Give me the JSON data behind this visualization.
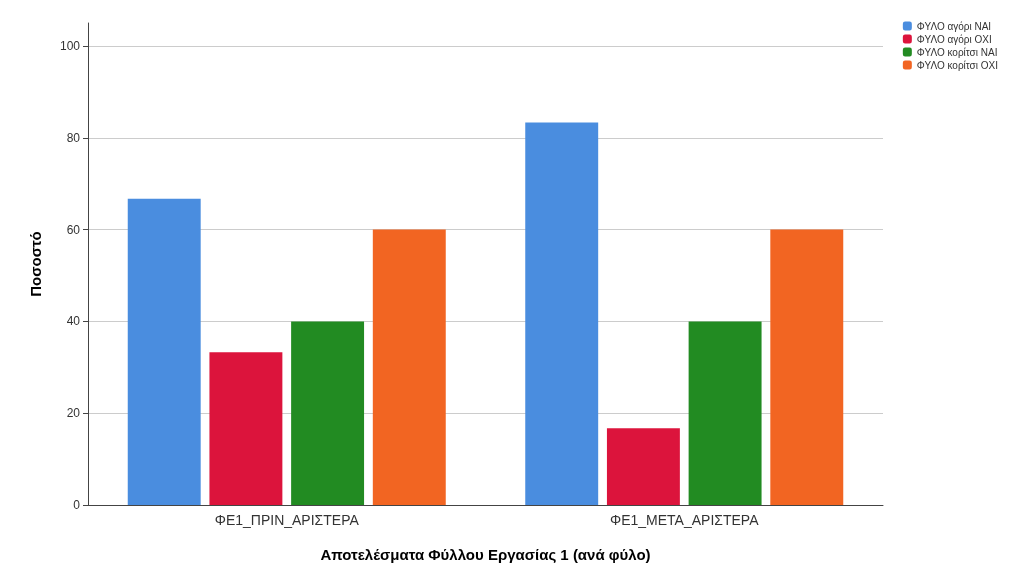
{
  "chart_data": {
    "type": "bar",
    "xlabel": "Αποτελέσματα Φύλλου Εργασίας 1 (ανά φύλο)",
    "ylabel": "Ποσοστό",
    "categories": [
      "ΦΕ1_ΠΡΙΝ_ΑΡΙΣΤΕΡΑ",
      "ΦΕ1_ΜΕΤΑ_ΑΡΙΣΤΕΡΑ"
    ],
    "series": [
      {
        "name": "ΦΥΛΟ αγόρι ΝΑΙ",
        "color": "#4a8ddf",
        "values": [
          66.7,
          83.3
        ]
      },
      {
        "name": "ΦΥΛΟ αγόρι ΟΧΙ",
        "color": "#dc143c",
        "values": [
          33.3,
          16.7
        ]
      },
      {
        "name": "ΦΥΛΟ κορίτσι ΝΑΙ",
        "color": "#228b22",
        "values": [
          40,
          40
        ]
      },
      {
        "name": "ΦΥΛΟ κορίτσι ΟΧΙ",
        "color": "#f26522",
        "values": [
          60,
          60
        ]
      }
    ],
    "ylim": [
      0,
      105
    ],
    "yticks": [
      0,
      20,
      40,
      60,
      80,
      100
    ],
    "grid": "y",
    "legend": "top right"
  }
}
